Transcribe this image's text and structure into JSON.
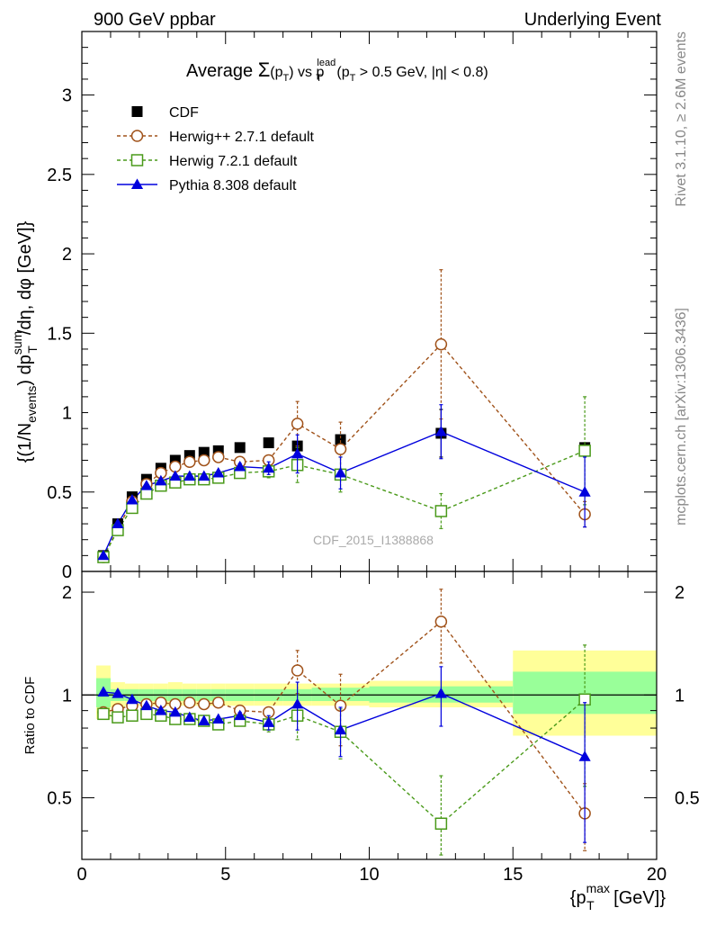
{
  "header": {
    "left": "900 GeV ppbar",
    "right": "Underlying Event"
  },
  "side_labels": {
    "rivet": "Rivet 3.1.10, ≥ 2.6M events",
    "mcplots": "mcplots.cern.ch [arXiv:1306.3436]"
  },
  "watermark": "CDF_2015_I1388868",
  "title": {
    "prefix": "Average ",
    "sigma": "Σ",
    "pT": "(p",
    "sub_T": "T",
    "close": ")",
    "vs": " vs p",
    "sup_lead": "lead",
    "sub_T2": "T",
    "cuts": " (p",
    "sub_T3": "T",
    "cuts2": " > 0.5 GeV, |η| < 0.8)"
  },
  "ylabel_main": {
    "part1": "{(1/N",
    "sub_events": "events",
    "part2": ") dp",
    "sup_sum": "sum",
    "sub_T": "T",
    "part3": "/dη, dφ [GeV]}"
  },
  "ylabel_ratio": "Ratio to CDF",
  "xlabel": {
    "part1": "{p",
    "sup_max": "max",
    "sub_T": "T",
    "part2": " [GeV]}"
  },
  "colors": {
    "cdf": "#000000",
    "herwigpp": "#a0521a",
    "herwig7": "#4a9a1a",
    "pythia": "#0000dd",
    "band_yellow": "#ffff99",
    "band_green": "#99ff99"
  },
  "chart_data": {
    "type": "scatter",
    "x_range": [
      0,
      20
    ],
    "main_ylim": [
      0,
      3.4
    ],
    "ratio_ylim": [
      0.33,
      2.3
    ],
    "x_ticks": [
      "0",
      "5",
      "10",
      "15",
      "20"
    ],
    "main_y_ticks": [
      "0",
      "0.5",
      "1",
      "1.5",
      "2",
      "2.5",
      "3"
    ],
    "main_y_tick_values": [
      0,
      0.5,
      1,
      1.5,
      2,
      2.5,
      3
    ],
    "ratio_y_ticks": [
      "0.5",
      "1",
      "2"
    ],
    "ratio_y_tick_values": [
      0.5,
      1,
      2
    ],
    "x": [
      0.75,
      1.25,
      1.75,
      2.25,
      2.75,
      3.25,
      3.75,
      4.25,
      4.75,
      5.5,
      6.5,
      7.5,
      9.0,
      12.5,
      17.5
    ],
    "bin_edges": [
      0.5,
      1.0,
      1.5,
      2.0,
      2.5,
      3.0,
      3.5,
      4.0,
      4.5,
      5.0,
      6.0,
      7.0,
      8.0,
      10.0,
      15.0,
      20.0
    ],
    "band_yellow": [
      [
        0.85,
        1.22
      ],
      [
        0.92,
        1.09
      ],
      [
        0.93,
        1.08
      ],
      [
        0.93,
        1.08
      ],
      [
        0.93,
        1.08
      ],
      [
        0.93,
        1.09
      ],
      [
        0.93,
        1.08
      ],
      [
        0.93,
        1.08
      ],
      [
        0.93,
        1.08
      ],
      [
        0.93,
        1.08
      ],
      [
        0.93,
        1.08
      ],
      [
        0.93,
        1.08
      ],
      [
        0.93,
        1.08
      ],
      [
        0.92,
        1.1
      ],
      [
        0.76,
        1.35
      ]
    ],
    "band_green": [
      [
        0.92,
        1.12
      ],
      [
        0.96,
        1.04
      ],
      [
        0.96,
        1.04
      ],
      [
        0.96,
        1.04
      ],
      [
        0.96,
        1.04
      ],
      [
        0.96,
        1.04
      ],
      [
        0.96,
        1.04
      ],
      [
        0.96,
        1.04
      ],
      [
        0.96,
        1.04
      ],
      [
        0.96,
        1.04
      ],
      [
        0.96,
        1.04
      ],
      [
        0.96,
        1.04
      ],
      [
        0.96,
        1.05
      ],
      [
        0.95,
        1.06
      ],
      [
        0.88,
        1.17
      ]
    ],
    "legend": [
      "CDF",
      "Herwig++ 2.7.1 default",
      "Herwig 7.2.1 default",
      "Pythia 8.308 default"
    ],
    "series": [
      {
        "name": "CDF",
        "marker": "filled-square",
        "line": "none",
        "values": [
          0.1,
          0.3,
          0.47,
          0.58,
          0.65,
          0.7,
          0.73,
          0.75,
          0.76,
          0.78,
          0.81,
          0.79,
          0.83,
          0.87,
          0.78
        ],
        "err": [
          0,
          0,
          0,
          0,
          0,
          0,
          0,
          0,
          0,
          0,
          0,
          0,
          0,
          0.15,
          0.03
        ],
        "ratio": [
          1,
          1,
          1,
          1,
          1,
          1,
          1,
          1,
          1,
          1,
          1,
          1,
          1,
          1,
          1
        ],
        "ratio_err": [
          0,
          0,
          0,
          0,
          0,
          0,
          0,
          0,
          0,
          0,
          0,
          0,
          0,
          0,
          0
        ]
      },
      {
        "name": "Herwig++ 2.7.1 default",
        "marker": "open-circle",
        "line": "dashed",
        "values": [
          0.09,
          0.27,
          0.44,
          0.55,
          0.62,
          0.66,
          0.69,
          0.7,
          0.72,
          0.69,
          0.7,
          0.93,
          0.77,
          1.43,
          0.36
        ],
        "err": [
          0,
          0,
          0,
          0,
          0,
          0,
          0,
          0,
          0,
          0.02,
          0.03,
          0.14,
          0.17,
          0.47,
          0.08
        ],
        "ratio": [
          0.89,
          0.91,
          0.93,
          0.94,
          0.95,
          0.94,
          0.95,
          0.94,
          0.95,
          0.9,
          0.89,
          1.18,
          0.93,
          1.64,
          0.45
        ],
        "ratio_err": [
          0,
          0,
          0,
          0,
          0,
          0,
          0,
          0,
          0,
          0.02,
          0.03,
          0.17,
          0.22,
          0.4,
          0.1
        ]
      },
      {
        "name": "Herwig 7.2.1 default",
        "marker": "open-square",
        "line": "dashed",
        "values": [
          0.09,
          0.26,
          0.4,
          0.49,
          0.54,
          0.56,
          0.58,
          0.58,
          0.59,
          0.62,
          0.63,
          0.67,
          0.61,
          0.38,
          0.76
        ],
        "err": [
          0,
          0,
          0,
          0,
          0,
          0,
          0,
          0,
          0,
          0.02,
          0.04,
          0.11,
          0.11,
          0.11,
          0.34
        ],
        "ratio": [
          0.88,
          0.86,
          0.87,
          0.88,
          0.87,
          0.85,
          0.85,
          0.84,
          0.82,
          0.84,
          0.82,
          0.87,
          0.78,
          0.42,
          0.97
        ],
        "ratio_err": [
          0,
          0,
          0,
          0,
          0,
          0,
          0,
          0,
          0,
          0.02,
          0.04,
          0.13,
          0.13,
          0.16,
          0.43
        ]
      },
      {
        "name": "Pythia 8.308 default",
        "marker": "filled-triangle",
        "line": "solid",
        "values": [
          0.1,
          0.3,
          0.45,
          0.54,
          0.57,
          0.6,
          0.6,
          0.6,
          0.62,
          0.66,
          0.65,
          0.74,
          0.62,
          0.88,
          0.5
        ],
        "err": [
          0,
          0,
          0,
          0,
          0,
          0,
          0,
          0,
          0,
          0.02,
          0.04,
          0.12,
          0.1,
          0.17,
          0.22
        ],
        "ratio": [
          1.02,
          1.01,
          0.97,
          0.93,
          0.9,
          0.89,
          0.86,
          0.84,
          0.85,
          0.87,
          0.83,
          0.94,
          0.79,
          1.01,
          0.66
        ],
        "ratio_err": [
          0,
          0,
          0,
          0,
          0,
          0,
          0,
          0,
          0,
          0.02,
          0.04,
          0.15,
          0.13,
          0.2,
          0.29
        ]
      }
    ]
  }
}
